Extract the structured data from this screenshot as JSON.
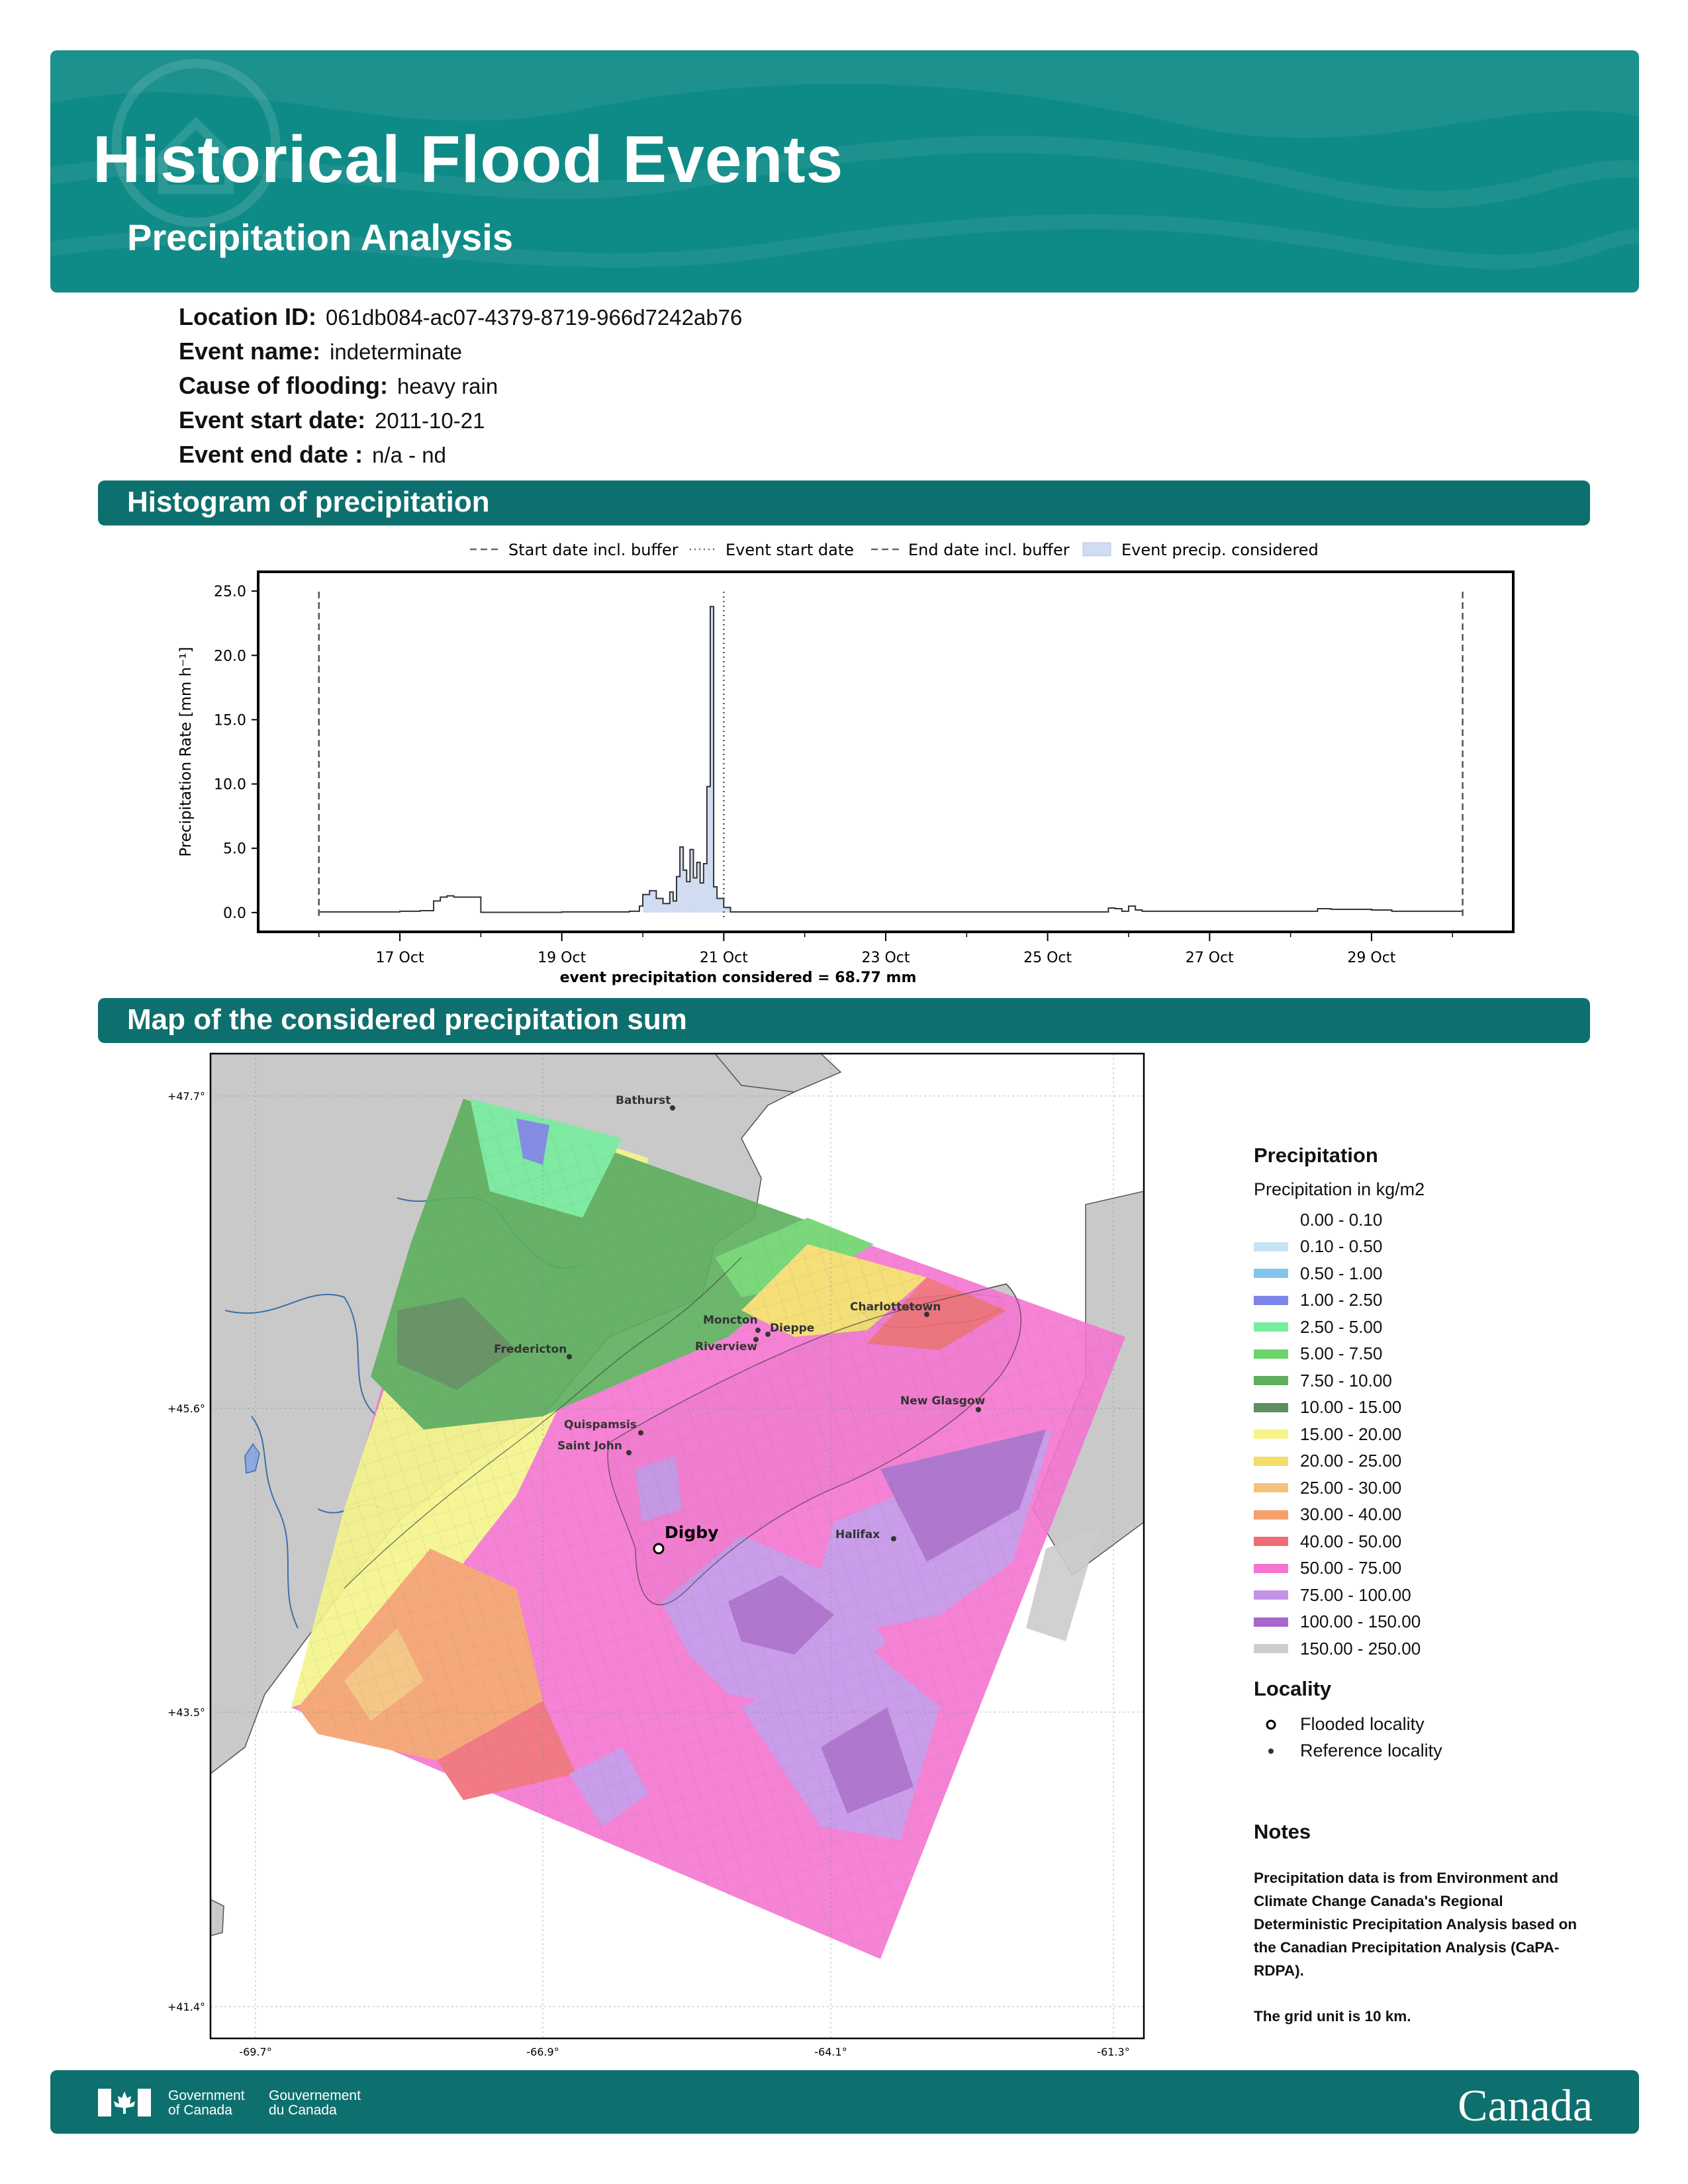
{
  "header": {
    "title": "Historical Flood Events",
    "subtitle": "Precipitation Analysis"
  },
  "event": {
    "location_id_label": "Location ID:",
    "location_id": "061db084-ac07-4379-8719-966d7242ab76",
    "event_name_label": "Event name:",
    "event_name": "indeterminate",
    "cause_label": "Cause of flooding:",
    "cause": "heavy rain",
    "start_label": "Event start date:",
    "start": "2011-10-21",
    "end_label": "Event end date :",
    "end": "n/a - nd"
  },
  "sections": {
    "histogram": "Histogram of precipitation",
    "map": "Map of the considered precipitation sum"
  },
  "chart_data": {
    "type": "bar",
    "ylabel": "Precipitation Rate [mm h⁻¹]",
    "xlabel": "event precipitation considered = 68.77 mm",
    "ylim": [
      -1.5,
      26.5
    ],
    "y_ticks": [
      "0.0",
      "5.0",
      "10.0",
      "15.0",
      "20.0",
      "25.0"
    ],
    "x_ticks": [
      "17 Oct",
      "19 Oct",
      "21 Oct",
      "23 Oct",
      "25 Oct",
      "27 Oct",
      "29 Oct"
    ],
    "legend": [
      "Start date incl. buffer",
      "Event start date",
      "End date incl. buffer",
      "Event precip. considered"
    ],
    "legend_position": "top",
    "lines": {
      "start_buffer": "2011-10-16 00:00",
      "event_start": "2011-10-21 00:00",
      "end_buffer": "2011-10-30 03:00"
    },
    "series": [
      {
        "x": [
          "10-16 00:00",
          "10-17 00:00",
          "10-17 06:00",
          "10-17 10:00",
          "10-17 12:00",
          "10-17 14:00",
          "10-17 16:00",
          "10-18 00:00",
          "10-19 00:00",
          "10-19 20:00",
          "10-19 23:00",
          "10-20 00:00",
          "10-20 02:00",
          "10-20 04:00",
          "10-20 06:00",
          "10-20 08:00",
          "10-20 09:00",
          "10-20 10:00",
          "10-20 11:00",
          "10-20 12:00",
          "10-20 13:00",
          "10-20 14:00",
          "10-20 15:00",
          "10-20 16:00",
          "10-20 17:00",
          "10-20 18:00",
          "10-20 19:00",
          "10-20 20:00",
          "10-20 21:00",
          "10-20 22:00",
          "10-21 00:00",
          "10-21 02:00",
          "10-22 00:00",
          "10-24 00:00",
          "10-25 18:00",
          "10-25 20:00",
          "10-25 22:00",
          "10-26 00:00",
          "10-26 02:00",
          "10-26 04:00",
          "10-27 00:00",
          "10-28 00:00",
          "10-28 08:00",
          "10-28 12:00",
          "10-29 00:00",
          "10-29 06:00",
          "10-30 03:00"
        ],
        "y": [
          0.05,
          0.1,
          0.15,
          0.9,
          1.2,
          1.3,
          1.2,
          0.02,
          0.05,
          0.1,
          0.5,
          1.4,
          1.7,
          1.1,
          0.7,
          1.6,
          0.9,
          2.8,
          5.1,
          3.3,
          2.4,
          4.9,
          2.7,
          3.9,
          2.3,
          3.8,
          9.8,
          23.8,
          2.0,
          1.1,
          0.4,
          0.05,
          0.05,
          0.05,
          0.35,
          0.3,
          0.1,
          0.5,
          0.2,
          0.1,
          0.1,
          0.1,
          0.3,
          0.25,
          0.2,
          0.1,
          0.0
        ]
      }
    ]
  },
  "map": {
    "lat_ticks": [
      "+47.7°",
      "+45.6°",
      "+43.5°",
      "+41.4°"
    ],
    "lon_ticks": [
      "-69.7°",
      "-66.9°",
      "-64.1°",
      "-61.3°"
    ],
    "places": [
      "Bathurst",
      "Moncton",
      "Dieppe",
      "Riverview",
      "Charlottetown",
      "Fredericton",
      "New Glasgow",
      "Quispamsis",
      "Saint John",
      "Halifax"
    ],
    "flooded_place": "Digby",
    "land_color": "#c9c9c9"
  },
  "legend": {
    "title": "Precipitation",
    "subtitle": "Precipitation in kg/m2",
    "items": [
      {
        "label": "0.00 - 0.10",
        "color": "#ffffff"
      },
      {
        "label": "0.10 - 0.50",
        "color": "#c6e3f5"
      },
      {
        "label": "0.50 - 1.00",
        "color": "#85c4ec"
      },
      {
        "label": "1.00 - 2.50",
        "color": "#7d86e8"
      },
      {
        "label": "2.50 - 5.00",
        "color": "#76ee9e"
      },
      {
        "label": "5.00 - 7.50",
        "color": "#6cd46c"
      },
      {
        "label": "7.50 - 10.00",
        "color": "#5db05d"
      },
      {
        "label": "10.00 - 15.00",
        "color": "#5e8f5e"
      },
      {
        "label": "15.00 - 20.00",
        "color": "#f5f58b"
      },
      {
        "label": "20.00 - 25.00",
        "color": "#f3dc6a"
      },
      {
        "label": "25.00 - 30.00",
        "color": "#f5c27a"
      },
      {
        "label": "30.00 - 40.00",
        "color": "#f5a06c"
      },
      {
        "label": "40.00 - 50.00",
        "color": "#f06c78"
      },
      {
        "label": "50.00 - 75.00",
        "color": "#f575d0"
      },
      {
        "label": "75.00 - 100.00",
        "color": "#c493e8"
      },
      {
        "label": "100.00 - 150.00",
        "color": "#a769c9"
      },
      {
        "label": "150.00 - 250.00",
        "color": "#cdcdcd"
      }
    ],
    "locality_title": "Locality",
    "flooded": "Flooded locality",
    "reference": "Reference locality"
  },
  "notes": {
    "title": "Notes",
    "text1": "Precipitation data is from Environment and Climate Change Canada's Regional Deterministic Precipitation Analysis based on the Canadian Precipitation Analysis (CaPA-RDPA).",
    "text2": "The grid unit is 10 km."
  },
  "footer": {
    "gov_en_1": "Government",
    "gov_en_2": "of Canada",
    "gov_fr_1": "Gouvernement",
    "gov_fr_2": "du Canada",
    "wordmark": "Canada"
  }
}
